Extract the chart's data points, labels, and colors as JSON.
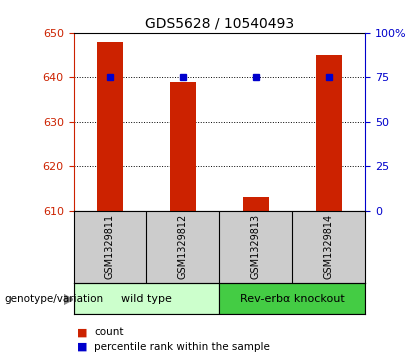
{
  "title": "GDS5628 / 10540493",
  "samples": [
    "GSM1329811",
    "GSM1329812",
    "GSM1329813",
    "GSM1329814"
  ],
  "counts": [
    648,
    639,
    613,
    645
  ],
  "percentiles": [
    75,
    75,
    75,
    75
  ],
  "groups": [
    {
      "label": "wild type",
      "samples": [
        0,
        1
      ],
      "color": "#ccffcc"
    },
    {
      "label": "Rev-erbα knockout",
      "samples": [
        2,
        3
      ],
      "color": "#44cc44"
    }
  ],
  "ylim_left": [
    610,
    650
  ],
  "ylim_right": [
    0,
    100
  ],
  "yticks_left": [
    610,
    620,
    630,
    640,
    650
  ],
  "yticks_right": [
    0,
    25,
    50,
    75,
    100
  ],
  "ytick_labels_right": [
    "0",
    "25",
    "50",
    "75",
    "100%"
  ],
  "bar_color": "#cc2200",
  "dot_color": "#0000cc",
  "bar_width": 0.35,
  "group_label": "genotype/variation",
  "legend_count_label": "count",
  "legend_percentile_label": "percentile rank within the sample",
  "background_color": "#ffffff",
  "table_bg_color": "#cccccc",
  "title_fontsize": 10,
  "tick_fontsize": 8,
  "sample_fontsize": 7,
  "group_fontsize": 8,
  "legend_fontsize": 7.5
}
